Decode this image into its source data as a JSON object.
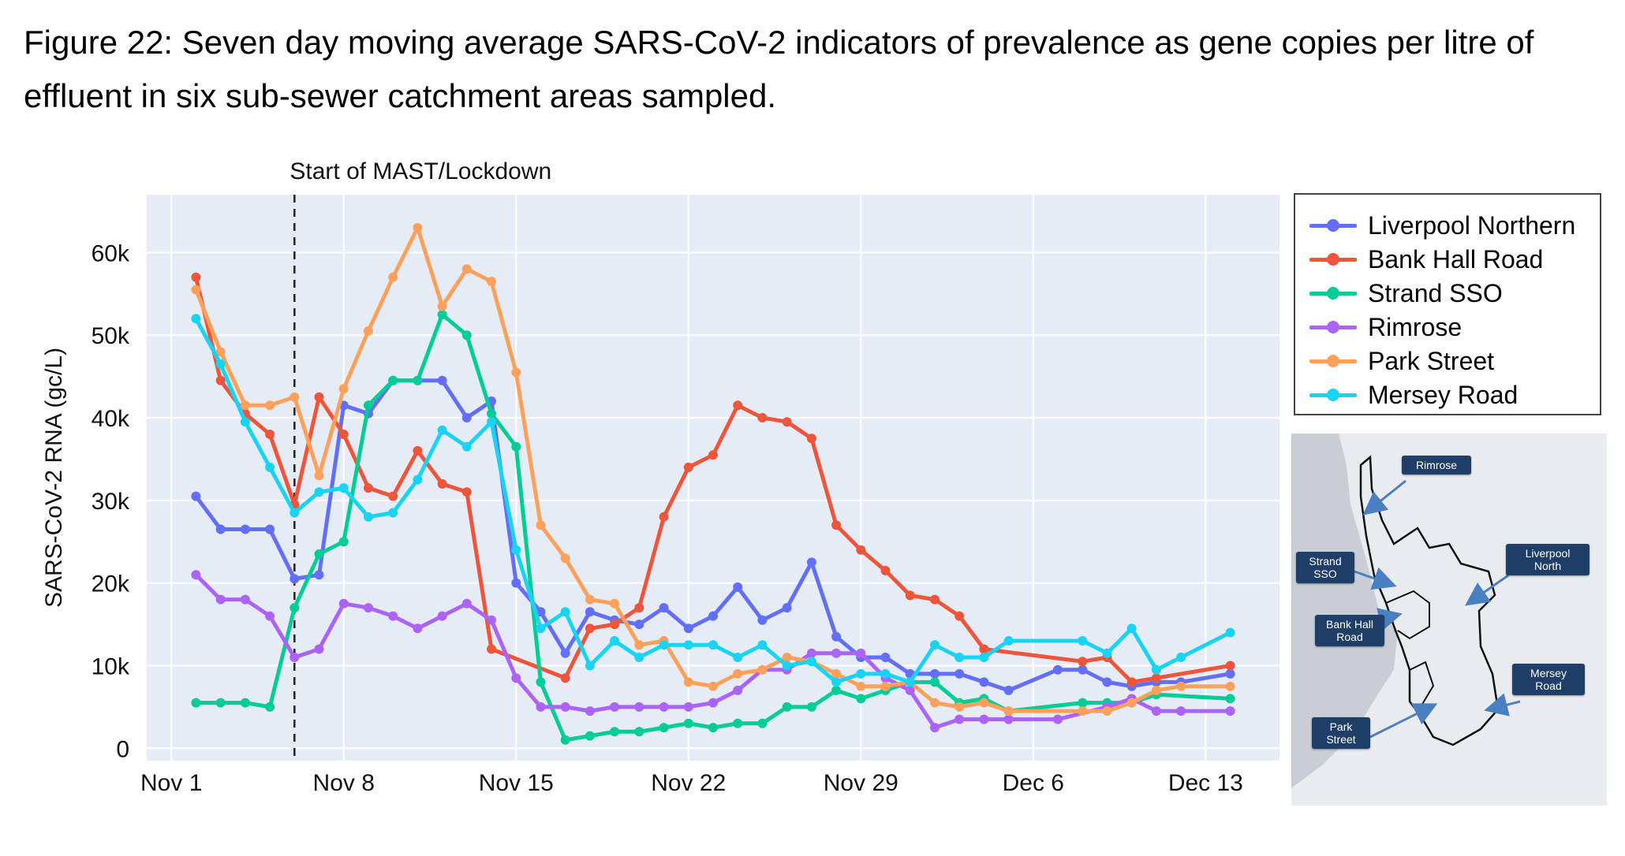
{
  "figure": {
    "title": "Figure 22: Seven day moving average SARS-CoV-2 indicators of prevalence as gene copies per litre of effluent in six sub-sewer catchment areas sampled."
  },
  "chart_data": {
    "type": "line",
    "title": "",
    "xlabel": "",
    "ylabel": "SARS-CoV-2 RNA (gc/L)",
    "x_ticks": [
      "Nov 1",
      "Nov 8",
      "Nov 15",
      "Nov 22",
      "Nov 29",
      "Dec 6",
      "Dec 13"
    ],
    "y_ticks": [
      "0",
      "10k",
      "20k",
      "30k",
      "40k",
      "50k",
      "60k"
    ],
    "ylim": [
      -1500,
      67000
    ],
    "x_range": [
      "2020-10-31",
      "2020-12-16"
    ],
    "grid": true,
    "background": "#e5ecf6",
    "legend_position": "right",
    "annotation": {
      "date": "2020-11-06",
      "label": "Start of MAST/Lockdown"
    },
    "series": [
      {
        "name": "Liverpool Northern",
        "color": "#636efa",
        "x": [
          "2020-11-02",
          "2020-11-03",
          "2020-11-04",
          "2020-11-05",
          "2020-11-06",
          "2020-11-07",
          "2020-11-08",
          "2020-11-09",
          "2020-11-10",
          "2020-11-11",
          "2020-11-12",
          "2020-11-13",
          "2020-11-14",
          "2020-11-15",
          "2020-11-16",
          "2020-11-17",
          "2020-11-18",
          "2020-11-19",
          "2020-11-20",
          "2020-11-21",
          "2020-11-22",
          "2020-11-23",
          "2020-11-24",
          "2020-11-25",
          "2020-11-26",
          "2020-11-27",
          "2020-11-28",
          "2020-11-29",
          "2020-11-30",
          "2020-12-01",
          "2020-12-02",
          "2020-12-03",
          "2020-12-04",
          "2020-12-05",
          "2020-12-07",
          "2020-12-08",
          "2020-12-09",
          "2020-12-10",
          "2020-12-11",
          "2020-12-12",
          "2020-12-14"
        ],
        "y": [
          30500,
          26500,
          26500,
          26500,
          20500,
          21000,
          41500,
          40500,
          44500,
          44500,
          44500,
          40000,
          42000,
          20000,
          16500,
          11500,
          16500,
          15500,
          15000,
          17000,
          14500,
          16000,
          19500,
          15500,
          17000,
          22500,
          13500,
          11000,
          11000,
          9000,
          9000,
          9000,
          8000,
          7000,
          9500,
          9500,
          8000,
          7500,
          8000,
          8000,
          9000
        ]
      },
      {
        "name": "Bank Hall Road",
        "color": "#ef553b",
        "x": [
          "2020-11-02",
          "2020-11-03",
          "2020-11-04",
          "2020-11-05",
          "2020-11-06",
          "2020-11-07",
          "2020-11-08",
          "2020-11-09",
          "2020-11-10",
          "2020-11-11",
          "2020-11-12",
          "2020-11-13",
          "2020-11-14",
          "2020-11-17",
          "2020-11-18",
          "2020-11-19",
          "2020-11-20",
          "2020-11-21",
          "2020-11-22",
          "2020-11-23",
          "2020-11-24",
          "2020-11-25",
          "2020-11-26",
          "2020-11-27",
          "2020-11-28",
          "2020-11-29",
          "2020-11-30",
          "2020-12-01",
          "2020-12-02",
          "2020-12-03",
          "2020-12-04",
          "2020-12-08",
          "2020-12-09",
          "2020-12-10",
          "2020-12-11",
          "2020-12-14"
        ],
        "y": [
          57000,
          44500,
          40500,
          38000,
          29500,
          42500,
          38000,
          31500,
          30500,
          36000,
          32000,
          31000,
          12000,
          8500,
          14500,
          15000,
          17000,
          28000,
          34000,
          35500,
          41500,
          40000,
          39500,
          37500,
          27000,
          24000,
          21500,
          18500,
          18000,
          16000,
          12000,
          10500,
          11000,
          8000,
          8500,
          10000
        ]
      },
      {
        "name": "Strand SSO",
        "color": "#00cc96",
        "x": [
          "2020-11-02",
          "2020-11-03",
          "2020-11-04",
          "2020-11-05",
          "2020-11-06",
          "2020-11-07",
          "2020-11-08",
          "2020-11-09",
          "2020-11-10",
          "2020-11-11",
          "2020-11-12",
          "2020-11-13",
          "2020-11-14",
          "2020-11-15",
          "2020-11-16",
          "2020-11-17",
          "2020-11-18",
          "2020-11-19",
          "2020-11-20",
          "2020-11-21",
          "2020-11-22",
          "2020-11-23",
          "2020-11-24",
          "2020-11-25",
          "2020-11-26",
          "2020-11-27",
          "2020-11-28",
          "2020-11-29",
          "2020-11-30",
          "2020-12-01",
          "2020-12-02",
          "2020-12-03",
          "2020-12-04",
          "2020-12-05",
          "2020-12-08",
          "2020-12-09",
          "2020-12-10",
          "2020-12-11",
          "2020-12-14"
        ],
        "y": [
          5500,
          5500,
          5500,
          5000,
          17000,
          23500,
          25000,
          41500,
          44500,
          44500,
          52500,
          50000,
          40500,
          36500,
          8000,
          1000,
          1500,
          2000,
          2000,
          2500,
          3000,
          2500,
          3000,
          3000,
          5000,
          5000,
          7000,
          6000,
          7000,
          8000,
          8000,
          5500,
          6000,
          4500,
          5500,
          5500,
          5500,
          6500,
          6000
        ]
      },
      {
        "name": "Rimrose",
        "color": "#ab63fa",
        "x": [
          "2020-11-02",
          "2020-11-03",
          "2020-11-04",
          "2020-11-05",
          "2020-11-06",
          "2020-11-07",
          "2020-11-08",
          "2020-11-09",
          "2020-11-10",
          "2020-11-11",
          "2020-11-12",
          "2020-11-13",
          "2020-11-14",
          "2020-11-15",
          "2020-11-16",
          "2020-11-17",
          "2020-11-18",
          "2020-11-19",
          "2020-11-20",
          "2020-11-21",
          "2020-11-22",
          "2020-11-23",
          "2020-11-24",
          "2020-11-25",
          "2020-11-26",
          "2020-11-27",
          "2020-11-28",
          "2020-11-29",
          "2020-11-30",
          "2020-12-01",
          "2020-12-02",
          "2020-12-03",
          "2020-12-04",
          "2020-12-05",
          "2020-12-07",
          "2020-12-09",
          "2020-12-10",
          "2020-12-11",
          "2020-12-12",
          "2020-12-14"
        ],
        "y": [
          21000,
          18000,
          18000,
          16000,
          11000,
          12000,
          17500,
          17000,
          16000,
          14500,
          16000,
          17500,
          15500,
          8500,
          5000,
          5000,
          4500,
          5000,
          5000,
          5000,
          5000,
          5500,
          7000,
          9500,
          9500,
          11500,
          11500,
          11500,
          8500,
          7000,
          2500,
          3500,
          3500,
          3500,
          3500,
          5000,
          6000,
          4500,
          4500,
          4500
        ]
      },
      {
        "name": "Park Street",
        "color": "#ffa15a",
        "x": [
          "2020-11-02",
          "2020-11-03",
          "2020-11-04",
          "2020-11-05",
          "2020-11-06",
          "2020-11-07",
          "2020-11-08",
          "2020-11-09",
          "2020-11-10",
          "2020-11-11",
          "2020-11-12",
          "2020-11-13",
          "2020-11-14",
          "2020-11-15",
          "2020-11-16",
          "2020-11-17",
          "2020-11-18",
          "2020-11-19",
          "2020-11-20",
          "2020-11-21",
          "2020-11-22",
          "2020-11-23",
          "2020-11-24",
          "2020-11-25",
          "2020-11-26",
          "2020-11-27",
          "2020-11-28",
          "2020-11-29",
          "2020-11-30",
          "2020-12-01",
          "2020-12-02",
          "2020-12-03",
          "2020-12-04",
          "2020-12-05",
          "2020-12-08",
          "2020-12-09",
          "2020-12-10",
          "2020-12-11",
          "2020-12-12",
          "2020-12-14"
        ],
        "y": [
          55500,
          48000,
          41500,
          41500,
          42500,
          33000,
          43500,
          50500,
          57000,
          63000,
          53500,
          58000,
          56500,
          45500,
          27000,
          23000,
          18000,
          17500,
          12500,
          13000,
          8000,
          7500,
          9000,
          9500,
          11000,
          10500,
          9000,
          7500,
          7500,
          8000,
          5500,
          5000,
          5500,
          4500,
          4500,
          4500,
          5500,
          7000,
          7500,
          7500
        ]
      },
      {
        "name": "Mersey Road",
        "color": "#19d3f3",
        "x": [
          "2020-11-02",
          "2020-11-03",
          "2020-11-04",
          "2020-11-05",
          "2020-11-06",
          "2020-11-07",
          "2020-11-08",
          "2020-11-09",
          "2020-11-10",
          "2020-11-11",
          "2020-11-12",
          "2020-11-13",
          "2020-11-14",
          "2020-11-15",
          "2020-11-16",
          "2020-11-17",
          "2020-11-18",
          "2020-11-19",
          "2020-11-20",
          "2020-11-21",
          "2020-11-22",
          "2020-11-23",
          "2020-11-24",
          "2020-11-25",
          "2020-11-26",
          "2020-11-27",
          "2020-11-28",
          "2020-11-29",
          "2020-11-30",
          "2020-12-01",
          "2020-12-02",
          "2020-12-03",
          "2020-12-04",
          "2020-12-05",
          "2020-12-08",
          "2020-12-09",
          "2020-12-10",
          "2020-12-11",
          "2020-12-12",
          "2020-12-14"
        ],
        "y": [
          52000,
          46500,
          39500,
          34000,
          28500,
          31000,
          31500,
          28000,
          28500,
          32500,
          38500,
          36500,
          39500,
          24000,
          14500,
          16500,
          10000,
          13000,
          11000,
          12500,
          12500,
          12500,
          11000,
          12500,
          10000,
          10500,
          8000,
          9000,
          9000,
          8000,
          12500,
          11000,
          11000,
          13000,
          13000,
          11500,
          14500,
          9500,
          11000,
          14000
        ]
      }
    ]
  },
  "legend": {
    "items": [
      {
        "label": "Liverpool Northern",
        "color": "#636efa"
      },
      {
        "label": "Bank Hall Road",
        "color": "#ef553b"
      },
      {
        "label": "Strand SSO",
        "color": "#00cc96"
      },
      {
        "label": "Rimrose",
        "color": "#ab63fa"
      },
      {
        "label": "Park Street",
        "color": "#ffa15a"
      },
      {
        "label": "Mersey Road",
        "color": "#19d3f3"
      }
    ]
  },
  "map": {
    "labels": {
      "rimrose": "Rimrose",
      "strand": "Strand SSO",
      "liverpool_northern": "Liverpool North",
      "bank_hall": "Bank Hall Road",
      "mersey": "Mersey Road",
      "park": "Park Street"
    }
  }
}
